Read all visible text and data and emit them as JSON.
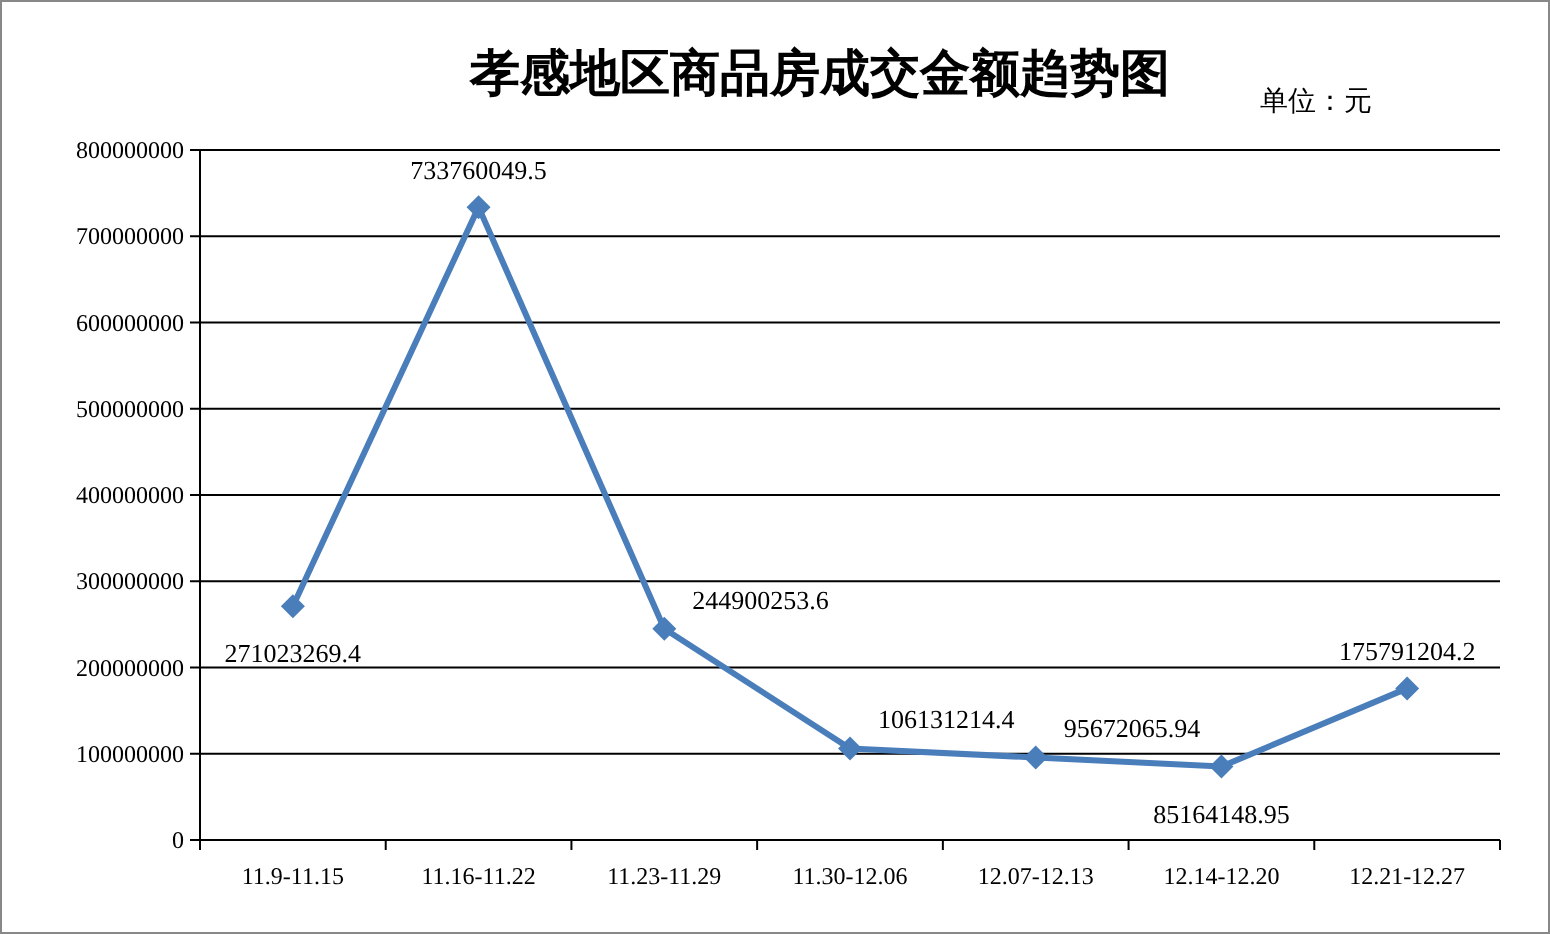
{
  "chart_data": {
    "type": "line",
    "title": "孝感地区商品房成交金额趋势图",
    "annotations": [
      "单位：元"
    ],
    "categories": [
      "11.9-11.15",
      "11.16-11.22",
      "11.23-11.29",
      "11.30-12.06",
      "12.07-12.13",
      "12.14-12.20",
      "12.21-12.27"
    ],
    "series": [
      {
        "color": "#4a7ebb",
        "values": [
          271023269.4,
          733760049.5,
          244900253.6,
          106131214.4,
          95672065.94,
          85164148.95,
          175791204.2
        ]
      }
    ],
    "ylim": [
      0,
      800000000
    ],
    "yticks": [
      0,
      100000000,
      200000000,
      300000000,
      400000000,
      500000000,
      600000000,
      700000000,
      800000000
    ],
    "grid": "y",
    "marker": "diamond",
    "line_style": "solid",
    "data_labels": true
  }
}
